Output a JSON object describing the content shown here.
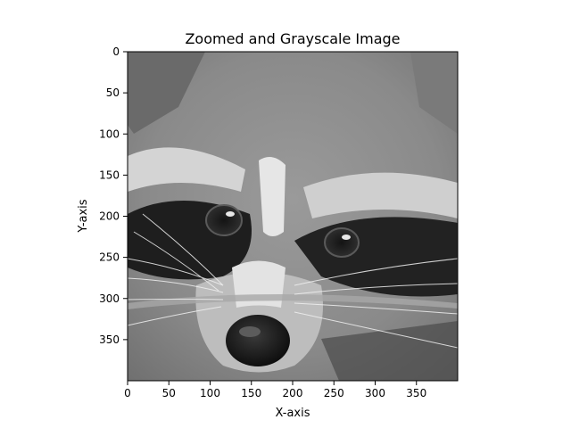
{
  "figure": {
    "background": "#ffffff"
  },
  "chart_data": {
    "type": "image",
    "title": "Zoomed and Grayscale Image",
    "xlabel": "X-axis",
    "ylabel": "Y-axis",
    "colormap": "gray",
    "image_subject": "raccoon face photograph (grayscale)",
    "xlim": [
      0,
      400
    ],
    "ylim": [
      400,
      0
    ],
    "x_ticks": [
      0,
      50,
      100,
      150,
      200,
      250,
      300,
      350
    ],
    "y_ticks": [
      0,
      50,
      100,
      150,
      200,
      250,
      300,
      350
    ],
    "grid": false,
    "legend": "none"
  }
}
